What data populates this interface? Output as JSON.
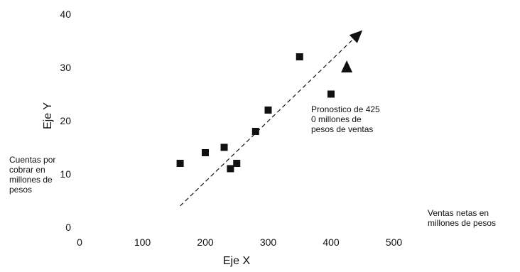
{
  "chart_data": {
    "type": "scatter",
    "title": "",
    "xlabel": "Eje X",
    "ylabel": "Eje Y",
    "xlim": [
      0,
      500
    ],
    "ylim": [
      0,
      40
    ],
    "x_ticks": [
      "0",
      "100",
      "200",
      "300",
      "400",
      "500"
    ],
    "y_ticks": [
      "0",
      "10",
      "20",
      "30",
      "40"
    ],
    "grid": false,
    "series": [
      {
        "x": [
          160,
          200,
          230,
          240,
          250,
          280,
          300,
          350,
          400
        ],
        "y": [
          12,
          14,
          15,
          11,
          12,
          18,
          22,
          32,
          25
        ],
        "marker": "square",
        "color": "#111111"
      }
    ],
    "trend_line": {
      "x": [
        160,
        450
      ],
      "y": [
        4,
        37
      ],
      "style": "dashed"
    },
    "forecast_point": {
      "x": 425,
      "y": 30,
      "marker": "triangle"
    },
    "annotations": {
      "forecast": "Pronostico de 425 0 millones de pesos de ventas",
      "y_description": "Cuentas por cobrar en millones de pesos",
      "x_description": "Ventas netas en millones de pesos"
    }
  }
}
